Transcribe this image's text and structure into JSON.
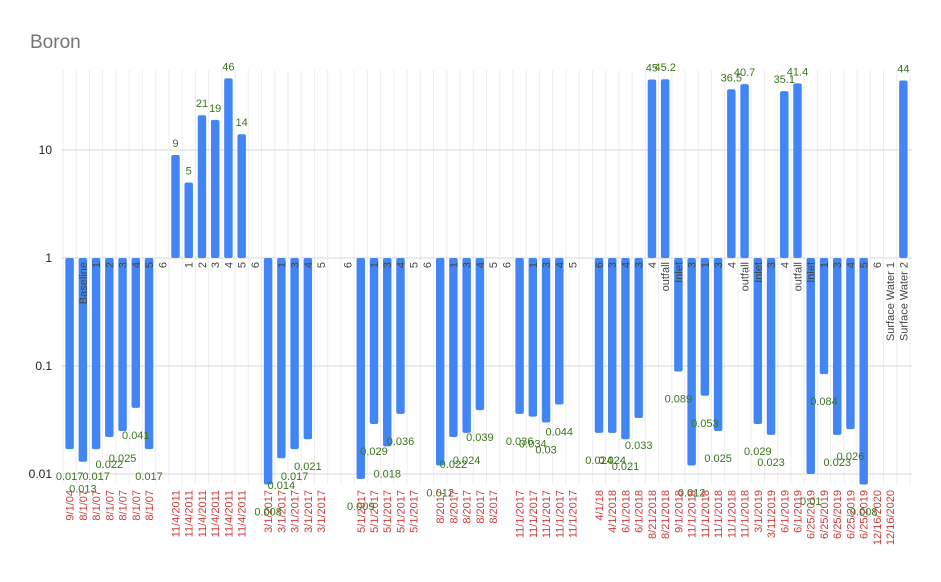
{
  "chart_data": {
    "type": "bar",
    "title": "Boron",
    "xlabel": "",
    "ylabel": "",
    "yscale": "log",
    "ylim": [
      0.008,
      50
    ],
    "baseline": 1,
    "y_ticks": [
      0.01,
      0.1,
      1,
      10
    ],
    "y_tick_labels": [
      "0.01",
      "0.1",
      "1",
      "10"
    ],
    "colors": {
      "bar": "#4285f4",
      "data_label": "#38761d",
      "x_tick": "#cc3b3b",
      "grid": "#d9d9d9"
    },
    "categories": [
      {
        "date": "9/1/04",
        "label": "",
        "value": 0.017,
        "value_label": "0.017"
      },
      {
        "date": "8/1/07",
        "label": "Baseline",
        "value": 0.013,
        "value_label": "0.013"
      },
      {
        "date": "8/1/07",
        "label": "1",
        "value": 0.017,
        "value_label": "0.017"
      },
      {
        "date": "8/1/07",
        "label": "2",
        "value": 0.022,
        "value_label": "0.022"
      },
      {
        "date": "8/1/07",
        "label": "3",
        "value": 0.025,
        "value_label": "0.025"
      },
      {
        "date": "8/1/07",
        "label": "4",
        "value": 0.041,
        "value_label": "0.041"
      },
      {
        "date": "8/1/07",
        "label": "5",
        "value": 0.017,
        "value_label": "0.017"
      },
      {
        "date": "",
        "label": "6",
        "value": null,
        "value_label": ""
      },
      {
        "date": "11/4/2011",
        "label": "",
        "value": 9,
        "value_label": "9"
      },
      {
        "date": "11/4/2011",
        "label": "1",
        "value": 5,
        "value_label": "5"
      },
      {
        "date": "11/4/2011",
        "label": "2",
        "value": 21,
        "value_label": "21"
      },
      {
        "date": "11/4/2011",
        "label": "3",
        "value": 19,
        "value_label": "19"
      },
      {
        "date": "11/4/2011",
        "label": "4",
        "value": 46,
        "value_label": "46"
      },
      {
        "date": "11/4/2011",
        "label": "5",
        "value": 14,
        "value_label": "14"
      },
      {
        "date": "",
        "label": "6",
        "value": null,
        "value_label": ""
      },
      {
        "date": "3/1/2017",
        "label": "",
        "value": 0.008,
        "value_label": "0.008"
      },
      {
        "date": "3/1/2017",
        "label": "1",
        "value": 0.014,
        "value_label": "0.014"
      },
      {
        "date": "3/1/2017",
        "label": "3",
        "value": 0.017,
        "value_label": "0.017"
      },
      {
        "date": "3/1/2017",
        "label": "4",
        "value": 0.021,
        "value_label": "0.021"
      },
      {
        "date": "3/1/2017",
        "label": "5",
        "value": null,
        "value_label": ""
      },
      {
        "date": "",
        "label": "",
        "value": null,
        "value_label": ""
      },
      {
        "date": "",
        "label": "6",
        "value": null,
        "value_label": ""
      },
      {
        "date": "5/1/2017",
        "label": "",
        "value": 0.009,
        "value_label": "0.009"
      },
      {
        "date": "5/1/2017",
        "label": "1",
        "value": 0.029,
        "value_label": "0.029"
      },
      {
        "date": "5/1/2017",
        "label": "3",
        "value": 0.018,
        "value_label": "0.018"
      },
      {
        "date": "5/1/2017",
        "label": "4",
        "value": 0.036,
        "value_label": "0.036"
      },
      {
        "date": "5/1/2017",
        "label": "5",
        "value": null,
        "value_label": ""
      },
      {
        "date": "",
        "label": "6",
        "value": null,
        "value_label": ""
      },
      {
        "date": "8/2017",
        "label": "",
        "value": 0.012,
        "value_label": "0.012"
      },
      {
        "date": "8/2017",
        "label": "1",
        "value": 0.022,
        "value_label": "0.022"
      },
      {
        "date": "8/2017",
        "label": "3",
        "value": 0.024,
        "value_label": "0.024"
      },
      {
        "date": "8/2017",
        "label": "4",
        "value": 0.039,
        "value_label": "0.039"
      },
      {
        "date": "8/2017",
        "label": "5",
        "value": null,
        "value_label": ""
      },
      {
        "date": "",
        "label": "6",
        "value": null,
        "value_label": ""
      },
      {
        "date": "11/1/2017",
        "label": "",
        "value": 0.036,
        "value_label": "0.036"
      },
      {
        "date": "11/1/2017",
        "label": "1",
        "value": 0.034,
        "value_label": "0.034"
      },
      {
        "date": "11/1/2017",
        "label": "3",
        "value": 0.03,
        "value_label": "0.03"
      },
      {
        "date": "11/1/2017",
        "label": "4",
        "value": 0.044,
        "value_label": "0.044"
      },
      {
        "date": "11/1/2017",
        "label": "5",
        "value": null,
        "value_label": ""
      },
      {
        "date": "",
        "label": "",
        "value": null,
        "value_label": ""
      },
      {
        "date": "4/1/18",
        "label": "6",
        "value": 0.024,
        "value_label": "0.024"
      },
      {
        "date": "4/1/2018",
        "label": "3",
        "value": 0.024,
        "value_label": "0.024"
      },
      {
        "date": "6/1/2018",
        "label": "4",
        "value": 0.021,
        "value_label": "0.021"
      },
      {
        "date": "6/1/2018",
        "label": "3",
        "value": 0.033,
        "value_label": "0.033"
      },
      {
        "date": "8/21/2018",
        "label": "4",
        "value": 45,
        "value_label": "45"
      },
      {
        "date": "8/21/2018",
        "label": "outfall",
        "value": 45.2,
        "value_label": "45.2"
      },
      {
        "date": "9/1/2018",
        "label": "Inlet",
        "value": 0.089,
        "value_label": "0.089"
      },
      {
        "date": "11/1/2018",
        "label": "3",
        "value": 0.012,
        "value_label": "0.012"
      },
      {
        "date": "11/1/2018",
        "label": "1",
        "value": 0.053,
        "value_label": "0.053"
      },
      {
        "date": "11/1/2018",
        "label": "3",
        "value": 0.025,
        "value_label": "0.025"
      },
      {
        "date": "11/1/2018",
        "label": "4",
        "value": 36.5,
        "value_label": "36.5"
      },
      {
        "date": "11/1/2018",
        "label": "outfall",
        "value": 40.7,
        "value_label": "40.7"
      },
      {
        "date": "3/1/2019",
        "label": "Inlet",
        "value": 0.029,
        "value_label": "0.029"
      },
      {
        "date": "3/11/2019",
        "label": "3",
        "value": 0.023,
        "value_label": "0.023"
      },
      {
        "date": "6/1/2019",
        "label": "4",
        "value": 35.1,
        "value_label": "35.1"
      },
      {
        "date": "6/1/2019",
        "label": "outfall",
        "value": 41.4,
        "value_label": "41.4"
      },
      {
        "date": "6/25/2019",
        "label": "Inlet",
        "value": 0.01,
        "value_label": "0.01"
      },
      {
        "date": "6/25/2019",
        "label": "1",
        "value": 0.084,
        "value_label": "0.084"
      },
      {
        "date": "6/25/2019",
        "label": "3",
        "value": 0.023,
        "value_label": "0.023"
      },
      {
        "date": "6/25/2019",
        "label": "4",
        "value": 0.026,
        "value_label": "0.026"
      },
      {
        "date": "6/25/2019",
        "label": "5",
        "value": 0.008,
        "value_label": "0.008"
      },
      {
        "date": "12/16/2020",
        "label": "6",
        "value": null,
        "value_label": ""
      },
      {
        "date": "12/16/2020",
        "label": "Surface Water 1",
        "value": null,
        "value_label": ""
      },
      {
        "date": "",
        "label": "Surface Water 2",
        "value": 44,
        "value_label": "44"
      }
    ]
  }
}
